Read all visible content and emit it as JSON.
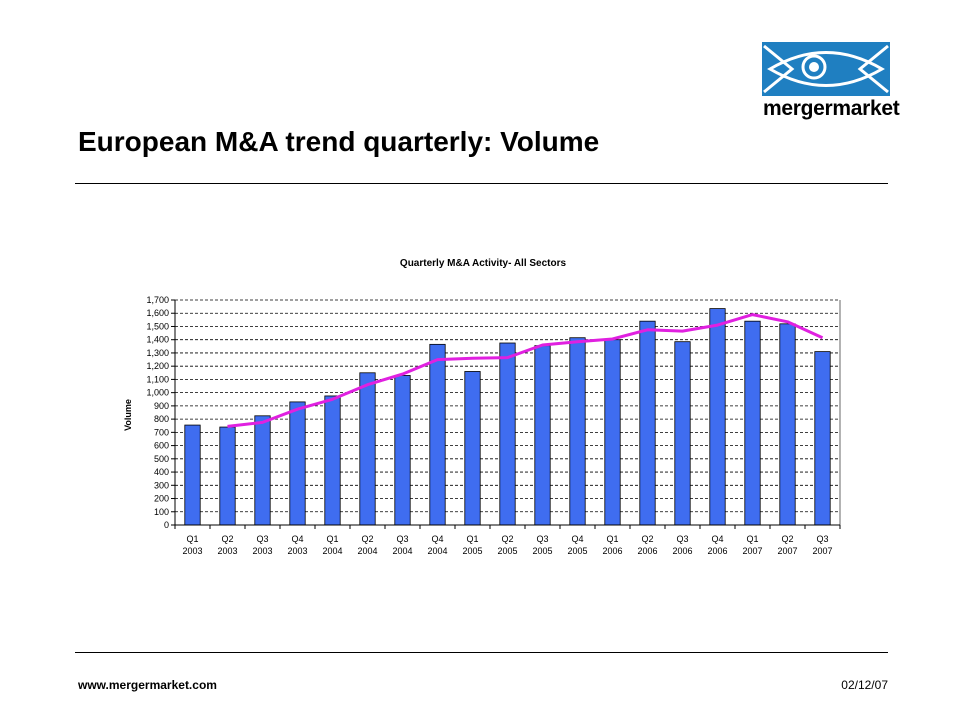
{
  "slide": {
    "title": "European M&A trend quarterly: Volume",
    "footer_url": "www.mergermarket.com",
    "footer_date": "02/12/07"
  },
  "logo": {
    "text": "mergermarket",
    "color": "#1f7fc1"
  },
  "chart_data": {
    "type": "bar",
    "title": "Quarterly M&A Activity- All Sectors",
    "ylabel": "Volume",
    "xlabel": "",
    "ylim": [
      0,
      1700
    ],
    "ytick_step": 100,
    "grid": true,
    "legend": "none",
    "categories": [
      [
        "Q1",
        "2003"
      ],
      [
        "Q2",
        "2003"
      ],
      [
        "Q3",
        "2003"
      ],
      [
        "Q4",
        "2003"
      ],
      [
        "Q1",
        "2004"
      ],
      [
        "Q2",
        "2004"
      ],
      [
        "Q3",
        "2004"
      ],
      [
        "Q4",
        "2004"
      ],
      [
        "Q1",
        "2005"
      ],
      [
        "Q2",
        "2005"
      ],
      [
        "Q3",
        "2005"
      ],
      [
        "Q4",
        "2005"
      ],
      [
        "Q1",
        "2006"
      ],
      [
        "Q2",
        "2006"
      ],
      [
        "Q3",
        "2006"
      ],
      [
        "Q4",
        "2006"
      ],
      [
        "Q1",
        "2007"
      ],
      [
        "Q2",
        "2007"
      ],
      [
        "Q3",
        "2007"
      ]
    ],
    "values": [
      755,
      740,
      825,
      930,
      975,
      1150,
      1130,
      1365,
      1160,
      1375,
      1355,
      1415,
      1400,
      1540,
      1385,
      1635,
      1540,
      1520,
      1310
    ],
    "trend": [
      null,
      745,
      775,
      875,
      950,
      1060,
      1140,
      1250,
      1260,
      1265,
      1360,
      1385,
      1405,
      1475,
      1465,
      1510,
      1590,
      1535,
      1415
    ],
    "colors": {
      "bar": "#3f6df0",
      "bar_stroke": "#000000",
      "trend": "#e020e0",
      "grid": "#000000"
    }
  }
}
